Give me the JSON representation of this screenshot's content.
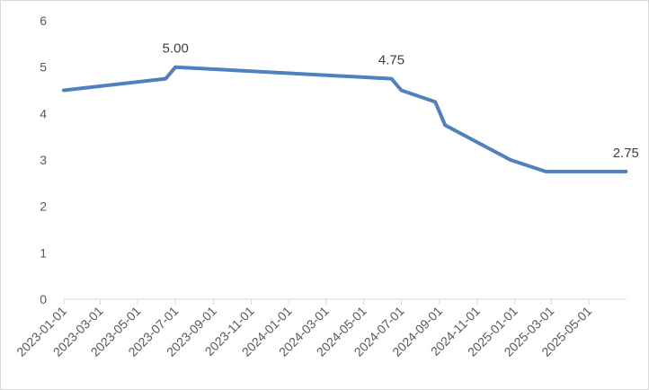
{
  "chart_data": {
    "type": "line",
    "title": "",
    "xlabel": "",
    "ylabel": "",
    "ylim": [
      0,
      6
    ],
    "yticks": [
      0,
      1,
      2,
      3,
      4,
      5,
      6
    ],
    "grid": false,
    "legend": "none",
    "line_color": "#4f81bd",
    "axis_color": "#d9d9d9",
    "text_color": "#595959",
    "x_tick_labels": [
      "2023-01-01",
      "2023-03-01",
      "2023-05-01",
      "2023-07-01",
      "2023-09-01",
      "2023-11-01",
      "2024-01-01",
      "2024-03-01",
      "2024-05-01",
      "2024-07-01",
      "2024-09-01",
      "2024-11-01",
      "2025-01-01",
      "2025-03-01",
      "2025-05-01"
    ],
    "series": [
      {
        "x": [
          "2023-01-01",
          "2023-06-15",
          "2023-07-01",
          "2024-06-15",
          "2024-07-01",
          "2024-08-25",
          "2024-09-10",
          "2024-12-25",
          "2025-02-20",
          "2025-06-30"
        ],
        "y": [
          4.5,
          4.75,
          5.0,
          4.75,
          4.5,
          4.25,
          3.75,
          3.0,
          2.75,
          2.75
        ]
      }
    ],
    "annotations": [
      {
        "x": "2023-07-01",
        "y": 5.0,
        "text": "5.00"
      },
      {
        "x": "2024-06-15",
        "y": 4.75,
        "text": "4.75"
      },
      {
        "x": "2025-06-30",
        "y": 2.75,
        "text": "2.75"
      }
    ]
  }
}
